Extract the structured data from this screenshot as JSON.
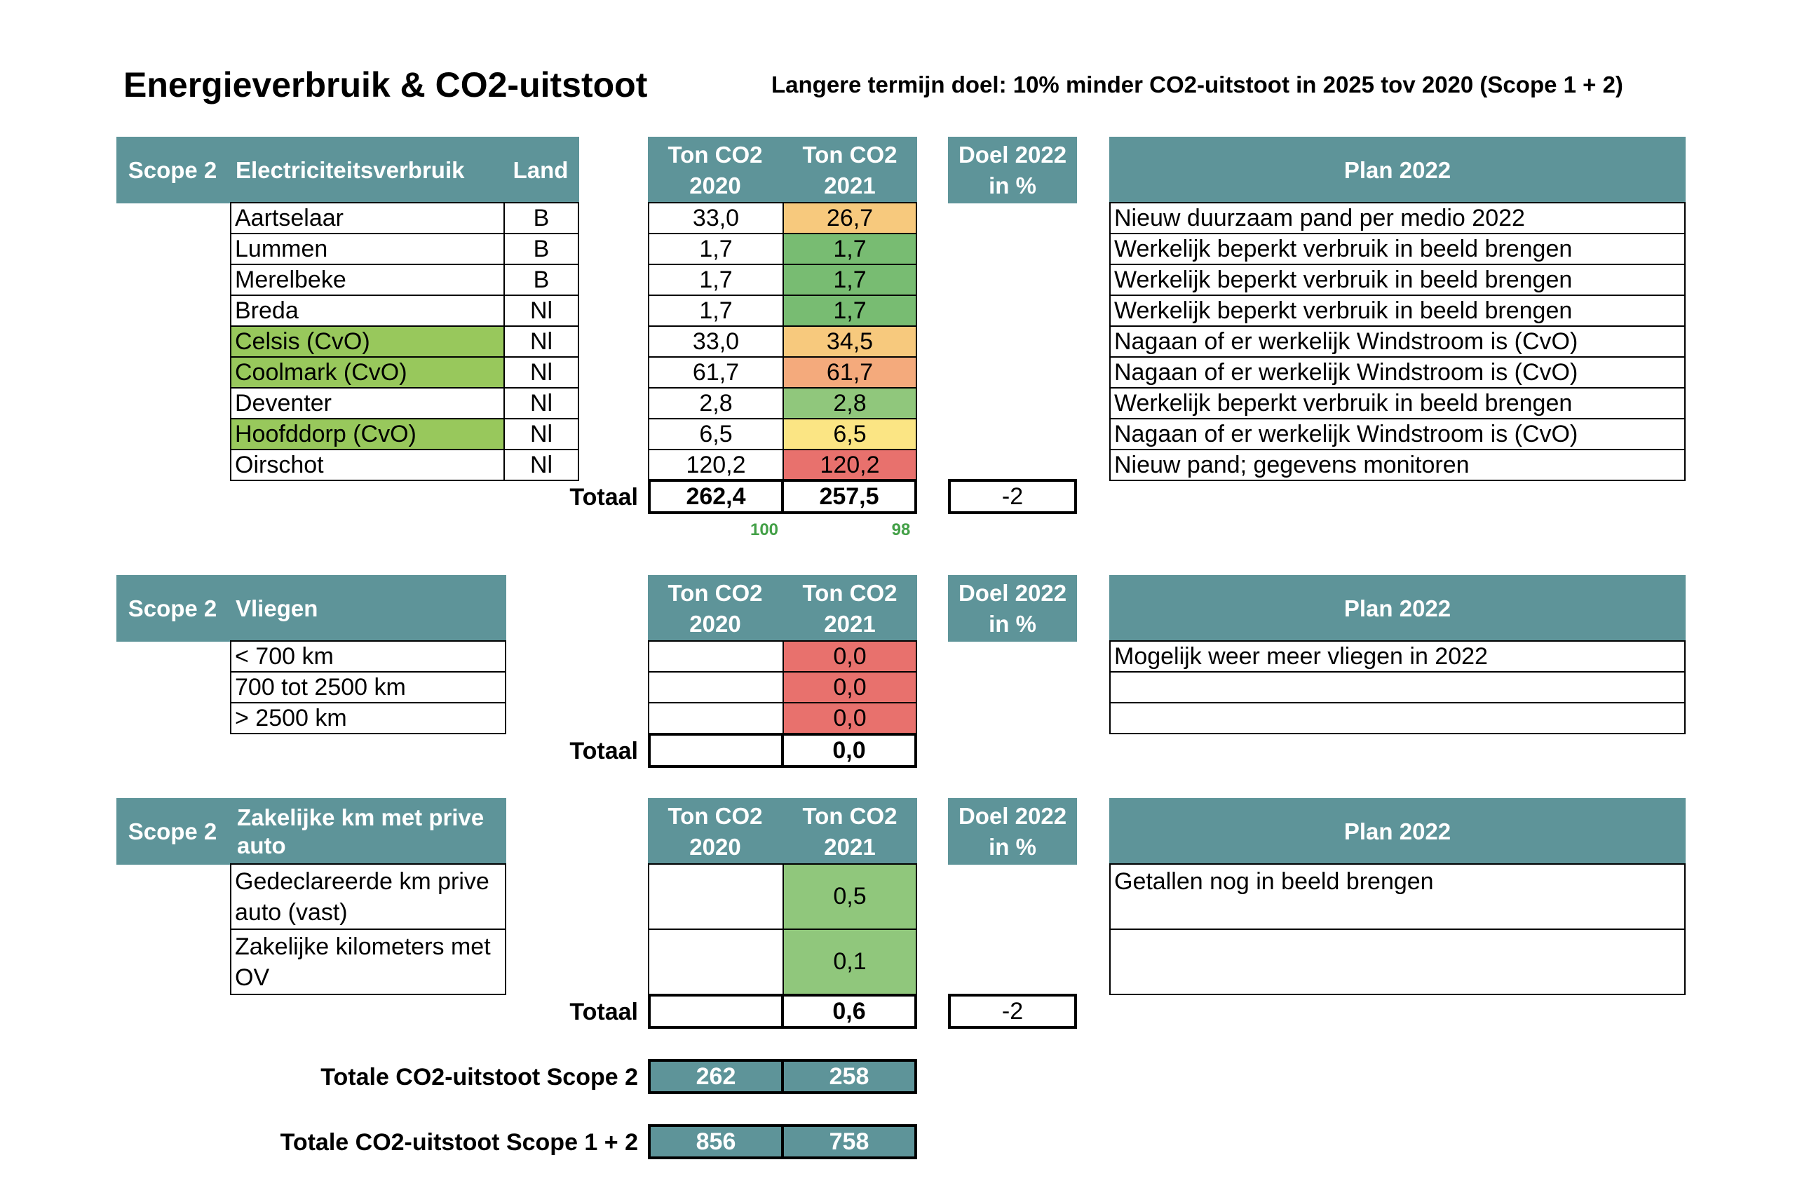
{
  "title": "Energieverbruik & CO2-uitstoot",
  "goal": "Langere termijn doel: 10% minder CO2-uitstoot in 2025 tov 2020 (Scope 1 + 2)",
  "headers": {
    "scope": "Scope 2",
    "land": "Land",
    "ton2020": "Ton CO2 2020",
    "ton2021": "Ton CO2 2021",
    "doel": "Doel 2022 in %",
    "plan": "Plan 2022"
  },
  "colors": {
    "header": "#5e9499",
    "green_strong": "#78bc72",
    "green_light": "#90c77c",
    "orange_light": "#f7c97d",
    "orange": "#f4aa7c",
    "yellow": "#fbe584",
    "red": "#e8716d",
    "label_green": "#98c85c"
  },
  "electricity": {
    "section": "Electriciteitsverbruik",
    "rows": [
      {
        "name": "Aartselaar",
        "land": "B",
        "v2020": "33,0",
        "v2021": "26,7",
        "plan": "Nieuw duurzaam pand per medio 2022"
      },
      {
        "name": "Lummen",
        "land": "B",
        "v2020": "1,7",
        "v2021": "1,7",
        "plan": "Werkelijk beperkt verbruik in beeld brengen"
      },
      {
        "name": "Merelbeke",
        "land": "B",
        "v2020": "1,7",
        "v2021": "1,7",
        "plan": "Werkelijk beperkt verbruik in beeld brengen"
      },
      {
        "name": "Breda",
        "land": "Nl",
        "v2020": "1,7",
        "v2021": "1,7",
        "plan": "Werkelijk beperkt verbruik in beeld brengen"
      },
      {
        "name": "Celsis (CvO)",
        "land": "Nl",
        "v2020": "33,0",
        "v2021": "34,5",
        "plan": "Nagaan of er werkelijk Windstroom is (CvO)"
      },
      {
        "name": "Coolmark (CvO)",
        "land": "Nl",
        "v2020": "61,7",
        "v2021": "61,7",
        "plan": "Nagaan of er werkelijk Windstroom is (CvO)"
      },
      {
        "name": "Deventer",
        "land": "Nl",
        "v2020": "2,8",
        "v2021": "2,8",
        "plan": "Werkelijk beperkt verbruik in beeld brengen"
      },
      {
        "name": "Hoofddorp (CvO)",
        "land": "Nl",
        "v2020": "6,5",
        "v2021": "6,5",
        "plan": "Nagaan of er werkelijk Windstroom is (CvO)"
      },
      {
        "name": "Oirschot",
        "land": "Nl",
        "v2020": "120,2",
        "v2021": "120,2",
        "plan": "Nieuw pand; gegevens monitoren"
      }
    ],
    "total_label": "Totaal",
    "total2020": "262,4",
    "total2021": "257,5",
    "doel": "-2",
    "index2020": "100",
    "index2021": "98"
  },
  "flights": {
    "section": "Vliegen",
    "rows": [
      {
        "name": "< 700 km",
        "v2020": "",
        "v2021": "0,0",
        "plan": "Mogelijk weer meer vliegen in 2022"
      },
      {
        "name": "700 tot 2500 km",
        "v2020": "",
        "v2021": "0,0",
        "plan": ""
      },
      {
        "name": "> 2500 km",
        "v2020": "",
        "v2021": "0,0",
        "plan": ""
      }
    ],
    "total_label": "Totaal",
    "total2020": "",
    "total2021": "0,0"
  },
  "car": {
    "section": "Zakelijke km met prive auto",
    "rows": [
      {
        "name": "Gedeclareerde km prive auto (vast)",
        "v2020": "",
        "v2021": "0,5",
        "plan": "Getallen nog in beeld brengen"
      },
      {
        "name": "Zakelijke kilometers met OV",
        "v2020": "",
        "v2021": "0,1",
        "plan": ""
      }
    ],
    "total_label": "Totaal",
    "total2020": "",
    "total2021": "0,6",
    "doel": "-2"
  },
  "totals": {
    "scope2_label": "Totale CO2-uitstoot Scope 2",
    "scope2_2020": "262",
    "scope2_2021": "258",
    "scope12_label": "Totale CO2-uitstoot Scope 1 + 2",
    "scope12_2020": "856",
    "scope12_2021": "758"
  }
}
